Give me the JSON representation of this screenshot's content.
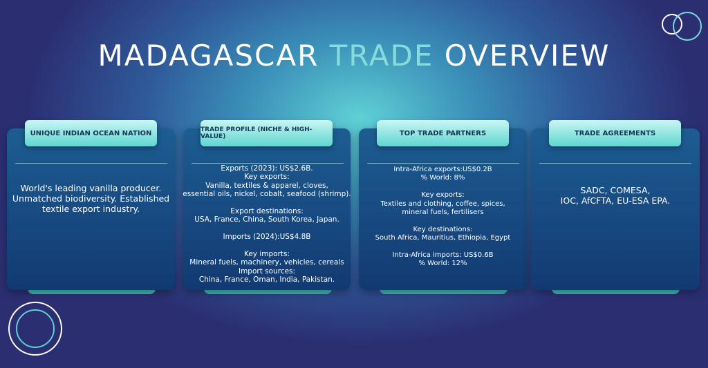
{
  "title": {
    "part1": "MADAGASCAR",
    "part2": "TRADE",
    "part3": "OVERVIEW",
    "accent": "#86dcdc"
  },
  "cards": [
    {
      "heading": "UNIQUE INDIAN OCEAN NATION",
      "body": "World's leading vanilla producer.\nUnmatched biodiversity. Established\ntextile export industry."
    },
    {
      "heading": "TRADE PROFILE (NICHE & HIGH-VALUE)",
      "body": "Exports (2023): US$2.6B.\nKey exports:\nVanilla, textiles & apparel, cloves,\nessential oils, nickel, cobalt, seafood (shrimp).\n\nExport destinations:\nUSA, France, China, South Korea, Japan.\n\nImports (2024):US$4.8B\n\nKey imports:\nMineral fuels, machinery, vehicles, cereals\nImport sources:\nChina, France, Oman, India, Pakistan."
    },
    {
      "heading": "TOP TRADE PARTNERS",
      "body": "Intra-Africa exports:US$0.2B\n% World: 8%\n\nKey exports:\nTextiles and clothing, coffee, spices,\nmineral fuels, fertilisers\n\nKey destinations:\nSouth Africa, Mauritius, Ethiopia, Egypt\n\nIntra-Africa imports: US$0.6B\n% World: 12%"
    },
    {
      "heading": "TRADE AGREEMENTS",
      "body": "SADC, COMESA,\nIOC, AfCFTA, EU-ESA EPA."
    }
  ]
}
